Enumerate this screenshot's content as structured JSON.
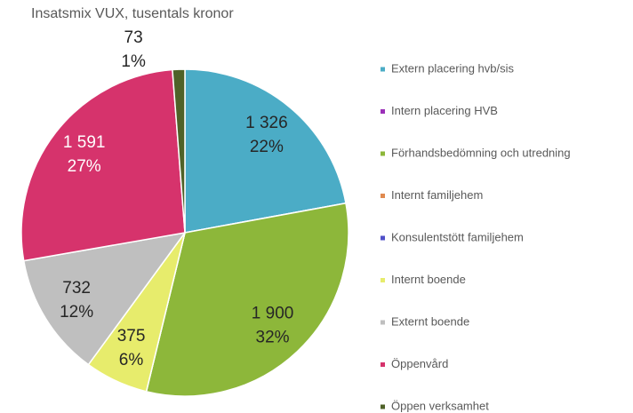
{
  "chart_data": {
    "type": "pie",
    "title": "Insatsmix VUX, tusentals kronor",
    "categories": [
      "Extern placering hvb/sis",
      "Intern placering HVB",
      "Förhandsbedömning och utredning",
      "Internt familjehem",
      "Konsulentstött familjehem",
      "Internt boende",
      "Externt boende",
      "Öppenvård",
      "Öppen verksamhet"
    ],
    "values": [
      1326,
      0,
      1900,
      0,
      0,
      375,
      732,
      1591,
      73
    ],
    "value_labels": [
      "1 326",
      null,
      "1 900",
      null,
      null,
      "375",
      "732",
      "1 591",
      "73"
    ],
    "percent_labels": [
      "22%",
      null,
      "32%",
      null,
      null,
      "6%",
      "12%",
      "27%",
      "1%"
    ],
    "colors": [
      "#4bacc6",
      "#9b30b8",
      "#8db73a",
      "#e08a50",
      "#5050c8",
      "#e7ec6c",
      "#bfbfbf",
      "#d6336c",
      "#4f6228"
    ],
    "label_colors": [
      "#262626",
      null,
      "#262626",
      null,
      null,
      "#262626",
      "#262626",
      "#ffffff",
      "#262626"
    ]
  }
}
